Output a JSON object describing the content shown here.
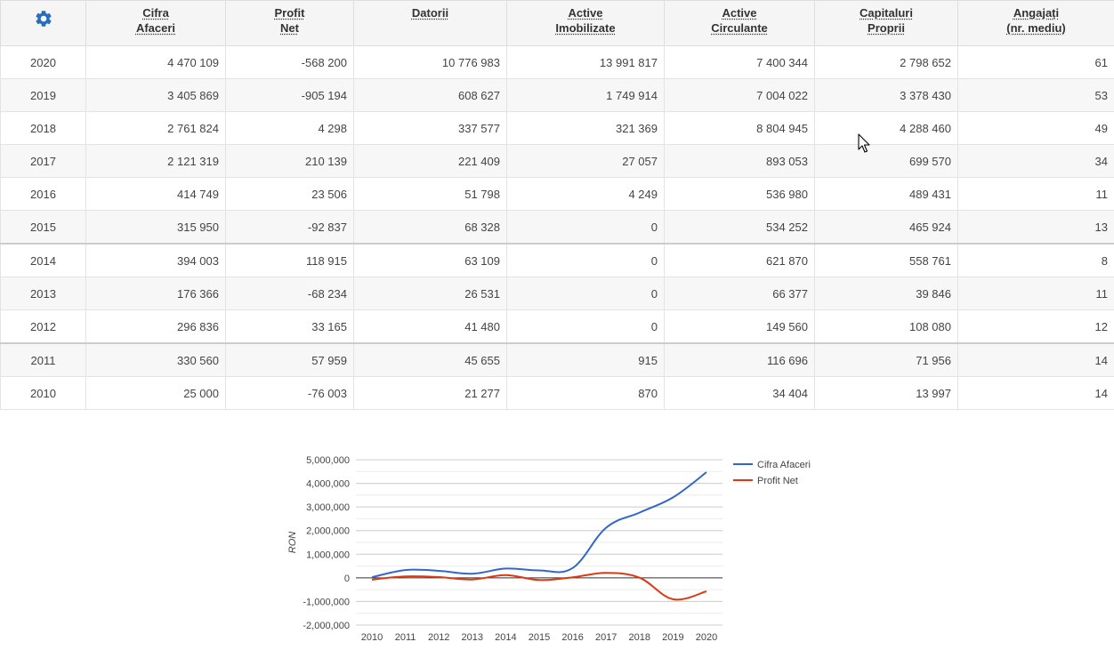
{
  "table": {
    "settings_icon": "gear-icon",
    "headers": [
      {
        "line1": "Cifra",
        "line2": "Afaceri"
      },
      {
        "line1": "Profit",
        "line2": "Net"
      },
      {
        "line1": "Datorii",
        "line2": ""
      },
      {
        "line1": "Active",
        "line2": "Imobilizate"
      },
      {
        "line1": "Active",
        "line2": "Circulante"
      },
      {
        "line1": "Capitaluri",
        "line2": "Proprii"
      },
      {
        "line1": "Angajați",
        "line2": "(nr. mediu)"
      }
    ],
    "rows": [
      {
        "year": "2020",
        "cifra": "4 470 109",
        "profit": "-568 200",
        "datorii": "10 776 983",
        "imob": "13 991 817",
        "circ": "7 400 344",
        "capital": "2 798 652",
        "angajati": "61"
      },
      {
        "year": "2019",
        "cifra": "3 405 869",
        "profit": "-905 194",
        "datorii": "608 627",
        "imob": "1 749 914",
        "circ": "7 004 022",
        "capital": "3 378 430",
        "angajati": "53"
      },
      {
        "year": "2018",
        "cifra": "2 761 824",
        "profit": "4 298",
        "datorii": "337 577",
        "imob": "321 369",
        "circ": "8 804 945",
        "capital": "4 288 460",
        "angajati": "49"
      },
      {
        "year": "2017",
        "cifra": "2 121 319",
        "profit": "210 139",
        "datorii": "221 409",
        "imob": "27 057",
        "circ": "893 053",
        "capital": "699 570",
        "angajati": "34"
      },
      {
        "year": "2016",
        "cifra": "414 749",
        "profit": "23 506",
        "datorii": "51 798",
        "imob": "4 249",
        "circ": "536 980",
        "capital": "489 431",
        "angajati": "11"
      },
      {
        "year": "2015",
        "cifra": "315 950",
        "profit": "-92 837",
        "datorii": "68 328",
        "imob": "0",
        "circ": "534 252",
        "capital": "465 924",
        "angajati": "13"
      },
      {
        "year": "2014",
        "cifra": "394 003",
        "profit": "118 915",
        "datorii": "63 109",
        "imob": "0",
        "circ": "621 870",
        "capital": "558 761",
        "angajati": "8"
      },
      {
        "year": "2013",
        "cifra": "176 366",
        "profit": "-68 234",
        "datorii": "26 531",
        "imob": "0",
        "circ": "66 377",
        "capital": "39 846",
        "angajati": "11"
      },
      {
        "year": "2012",
        "cifra": "296 836",
        "profit": "33 165",
        "datorii": "41 480",
        "imob": "0",
        "circ": "149 560",
        "capital": "108 080",
        "angajati": "12"
      },
      {
        "year": "2011",
        "cifra": "330 560",
        "profit": "57 959",
        "datorii": "45 655",
        "imob": "915",
        "circ": "116 696",
        "capital": "71 956",
        "angajati": "14"
      },
      {
        "year": "2010",
        "cifra": "25 000",
        "profit": "-76 003",
        "datorii": "21 277",
        "imob": "870",
        "circ": "34 404",
        "capital": "13 997",
        "angajati": "14"
      }
    ]
  },
  "chart_data": {
    "type": "line",
    "title": "",
    "xlabel": "",
    "ylabel": "RON",
    "x": [
      "2010",
      "2011",
      "2012",
      "2013",
      "2014",
      "2015",
      "2016",
      "2017",
      "2018",
      "2019",
      "2020"
    ],
    "series": [
      {
        "name": "Cifra Afaceri",
        "color": "#3366cc",
        "values": [
          25000,
          330560,
          296836,
          176366,
          394003,
          315950,
          414749,
          2121319,
          2761824,
          3405869,
          4470109
        ]
      },
      {
        "name": "Profit Net",
        "color": "#dc3912",
        "values": [
          -76003,
          57959,
          33165,
          -68234,
          118915,
          -92837,
          23506,
          210139,
          4298,
          -905194,
          -568200
        ]
      }
    ],
    "yticks": [
      "5,000,000",
      "4,000,000",
      "3,000,000",
      "2,000,000",
      "1,000,000",
      "0",
      "-1,000,000",
      "-2,000,000"
    ],
    "ylim": [
      -2000000,
      5000000
    ],
    "grid": true,
    "legend_position": "right"
  },
  "colors": {
    "accent": "#2a6ebb",
    "cifra_line": "#3366cc",
    "profit_line": "#dc3912"
  }
}
